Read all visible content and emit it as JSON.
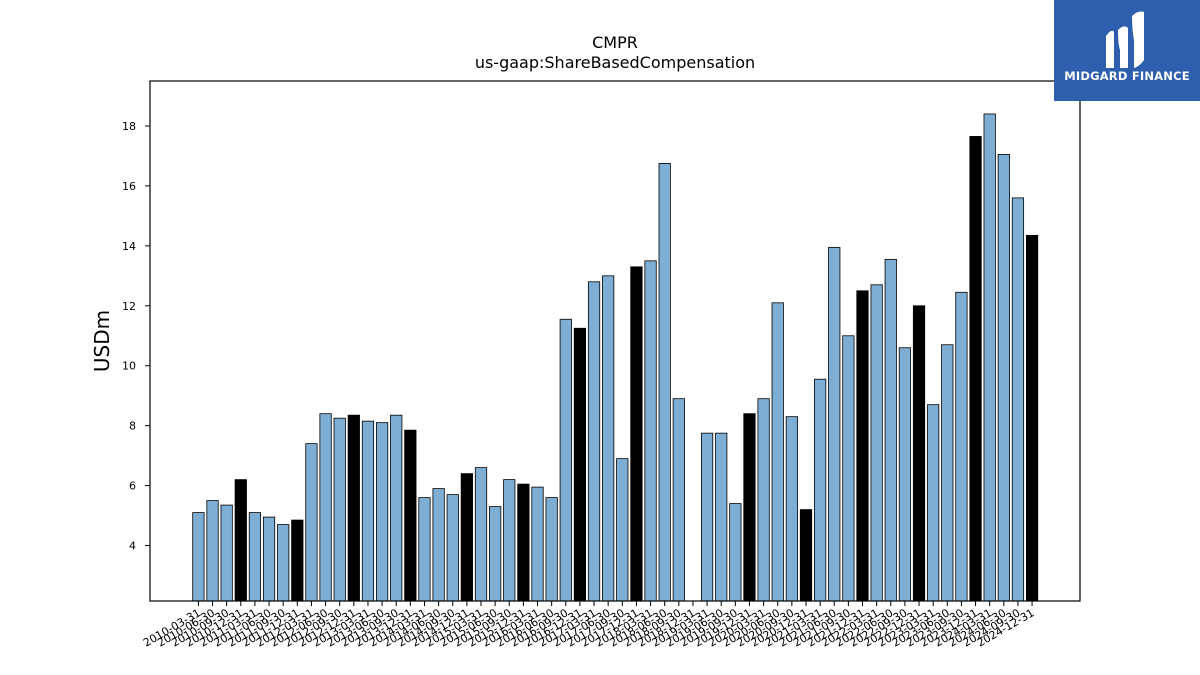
{
  "chart_data": {
    "type": "bar",
    "title": "CMPR",
    "subtitle": "us-gaap:ShareBasedCompensation",
    "xlabel": "",
    "ylabel": "USDm",
    "ylim": [
      2.15,
      19.5
    ],
    "yticks": [
      4,
      6,
      8,
      10,
      12,
      14,
      16,
      18
    ],
    "grid": false,
    "colors": {
      "quarter": "#7eaed3",
      "year_end": "#000000",
      "edge": "#000000"
    },
    "categories": [
      "2010-03-31",
      "2010-06-30",
      "2010-09-30",
      "2010-12-31",
      "2011-03-31",
      "2011-06-30",
      "2011-09-30",
      "2011-12-31",
      "2012-03-31",
      "2012-06-30",
      "2012-09-30",
      "2012-12-31",
      "2013-03-31",
      "2013-06-30",
      "2013-09-30",
      "2013-12-31",
      "2014-03-31",
      "2014-06-30",
      "2014-09-30",
      "2014-12-31",
      "2015-03-31",
      "2015-06-30",
      "2015-09-30",
      "2015-12-31",
      "2016-03-31",
      "2016-06-30",
      "2016-09-30",
      "2016-12-31",
      "2017-03-31",
      "2017-06-30",
      "2017-09-30",
      "2017-12-31",
      "2018-03-31",
      "2018-06-30",
      "2018-09-30",
      "2018-12-31",
      "2019-03-31",
      "2019-06-30",
      "2019-09-30",
      "2019-12-31",
      "2020-03-31",
      "2020-06-30",
      "2020-09-30",
      "2020-12-31",
      "2021-03-31",
      "2021-06-30",
      "2021-09-30",
      "2021-12-31",
      "2022-03-31",
      "2022-06-30",
      "2022-09-30",
      "2022-12-31",
      "2023-03-31",
      "2023-06-30",
      "2023-09-30",
      "2023-12-31",
      "2024-03-31",
      "2024-06-30",
      "2024-09-30",
      "2024-12-31"
    ],
    "values": [
      5.1,
      5.5,
      5.35,
      6.2,
      5.1,
      4.95,
      4.7,
      4.85,
      7.4,
      8.4,
      8.25,
      8.35,
      8.15,
      8.1,
      8.35,
      7.85,
      5.6,
      5.9,
      5.7,
      6.4,
      6.6,
      5.3,
      6.2,
      6.05,
      5.95,
      5.6,
      11.55,
      11.25,
      12.8,
      13.0,
      6.9,
      13.3,
      13.5,
      16.75,
      8.9,
      null,
      7.75,
      7.75,
      5.4,
      8.4,
      8.9,
      12.1,
      8.3,
      5.2,
      9.55,
      13.95,
      11.0,
      12.5,
      12.7,
      13.55,
      10.6,
      12.0,
      8.7,
      10.7,
      12.45,
      17.65,
      18.4,
      17.05,
      15.6,
      14.35
    ],
    "year_end": [
      false,
      false,
      false,
      true,
      false,
      false,
      false,
      true,
      false,
      false,
      false,
      true,
      false,
      false,
      false,
      true,
      false,
      false,
      false,
      true,
      false,
      false,
      false,
      true,
      false,
      false,
      false,
      true,
      false,
      false,
      false,
      true,
      false,
      false,
      false,
      true,
      false,
      false,
      false,
      true,
      false,
      false,
      false,
      true,
      false,
      false,
      false,
      true,
      false,
      false,
      false,
      true,
      false,
      false,
      false,
      true,
      false,
      false,
      false,
      true
    ]
  },
  "logo": {
    "text": "MIDGARD FINANCE",
    "icon": "midgard-logo-icon"
  }
}
